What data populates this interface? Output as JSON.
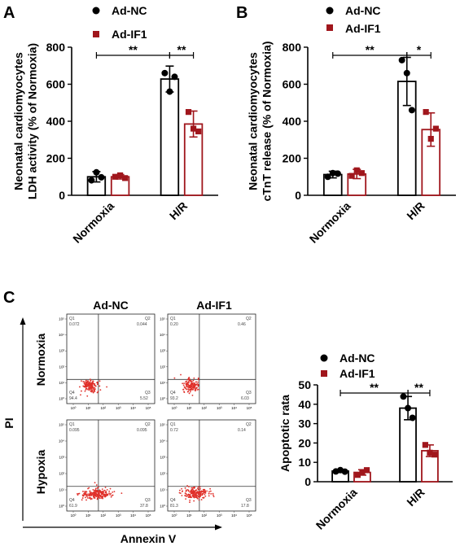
{
  "panels": {
    "A": "A",
    "B": "B",
    "C": "C"
  },
  "legend": {
    "ad_nc": "Ad-NC",
    "ad_if1": "Ad-IF1"
  },
  "colors": {
    "ad_nc": "#000000",
    "ad_if1": "#a0161c",
    "flow_dots": "#e0302a"
  },
  "flow": {
    "col_headers": [
      "Ad-NC",
      "Ad-IF1"
    ],
    "row_labels": [
      "Normoxia",
      "Hypoxia"
    ],
    "y_axis_label": "PI",
    "x_axis_label": "Annexin V",
    "quadrants": [
      {
        "q1": "Q1",
        "q1_val": "0.072",
        "q2": "Q2",
        "q2_val": "0.044",
        "q3": "Q3",
        "q3_val": "5.52",
        "q4": "Q4",
        "q4_val": "94.4"
      },
      {
        "q1": "Q1",
        "q1_val": "0.20",
        "q2": "Q2",
        "q2_val": "0.46",
        "q3": "Q3",
        "q3_val": "6.03",
        "q4": "Q4",
        "q4_val": "93.2"
      },
      {
        "q1": "Q1",
        "q1_val": "0.095",
        "q2": "Q2",
        "q2_val": "0.095",
        "q3": "Q3",
        "q3_val": "37.8",
        "q4": "Q4",
        "q4_val": "61.9"
      },
      {
        "q1": "Q1",
        "q1_val": "0.72",
        "q2": "Q2",
        "q2_val": "0.14",
        "q3": "Q3",
        "q3_val": "17.8",
        "q4": "Q4",
        "q4_val": "81.3"
      }
    ]
  },
  "chart_data": [
    {
      "type": "bar",
      "panel": "A",
      "categories": [
        "Normoxia",
        "H/R"
      ],
      "ylabel": "Neonatal cardiomyocytes LDH activity (% of Normoxia)",
      "ylabel_lines": [
        "Neonatal cardiomyocytes",
        "LDH activity (% of Normoxia)"
      ],
      "ylim": [
        0,
        800
      ],
      "yticks": [
        0,
        200,
        400,
        600,
        800
      ],
      "series": [
        {
          "name": "Ad-NC",
          "values": [
            100,
            628
          ],
          "errors": [
            28,
            70
          ],
          "points": [
            [
              81,
              124,
              97
            ],
            [
              660,
              560,
              640
            ]
          ]
        },
        {
          "name": "Ad-IF1",
          "values": [
            100,
            385
          ],
          "errors": [
            12,
            70
          ],
          "points": [
            [
              100,
              108,
              93
            ],
            [
              450,
              360,
              345
            ]
          ]
        }
      ],
      "significance": [
        {
          "label": "**",
          "from": [
            0,
            0
          ],
          "to": [
            1,
            0
          ]
        },
        {
          "label": "**",
          "from": [
            1,
            0
          ],
          "to": [
            1,
            1
          ]
        }
      ]
    },
    {
      "type": "bar",
      "panel": "B",
      "categories": [
        "Normoxia",
        "H/R"
      ],
      "ylabel": "Neonatal cardiomyocytes cTnT release (% of Normoxia)",
      "ylabel_lines": [
        "Neonatal cardiomyocytes",
        "cTnT release (% of Normoxia)"
      ],
      "ylim": [
        0,
        800
      ],
      "yticks": [
        0,
        200,
        400,
        600,
        800
      ],
      "series": [
        {
          "name": "Ad-NC",
          "values": [
            112,
            615
          ],
          "errors": [
            18,
            130
          ],
          "points": [
            [
              100,
              120,
              117
            ],
            [
              730,
              660,
              460
            ]
          ]
        },
        {
          "name": "Ad-IF1",
          "values": [
            115,
            355
          ],
          "errors": [
            25,
            90
          ],
          "points": [
            [
              105,
              135,
              120
            ],
            [
              450,
              305,
              360
            ]
          ]
        }
      ],
      "significance": [
        {
          "label": "**",
          "from": [
            0,
            0
          ],
          "to": [
            1,
            0
          ]
        },
        {
          "label": "*",
          "from": [
            1,
            0
          ],
          "to": [
            1,
            1
          ]
        }
      ]
    },
    {
      "type": "bar",
      "panel": "C",
      "categories": [
        "Normoxia",
        "H/R"
      ],
      "ylabel": "Apoptotic rata",
      "ylabel_lines": [
        "Apoptotic rata"
      ],
      "ylim": [
        0,
        50
      ],
      "yticks": [
        0,
        10,
        20,
        30,
        40,
        50
      ],
      "series": [
        {
          "name": "Ad-NC",
          "values": [
            5.5,
            38
          ],
          "errors": [
            0.7,
            6
          ],
          "points": [
            [
              5.3,
              6.0,
              5.2
            ],
            [
              44,
              38,
              33
            ]
          ]
        },
        {
          "name": "Ad-IF1",
          "values": [
            4.8,
            16
          ],
          "errors": [
            1.4,
            3
          ],
          "points": [
            [
              3.5,
              4.8,
              6.0
            ],
            [
              19,
              15,
              14
            ]
          ]
        }
      ],
      "significance": [
        {
          "label": "**",
          "from": [
            0,
            0
          ],
          "to": [
            1,
            0
          ]
        },
        {
          "label": "**",
          "from": [
            1,
            0
          ],
          "to": [
            1,
            1
          ]
        }
      ]
    }
  ]
}
